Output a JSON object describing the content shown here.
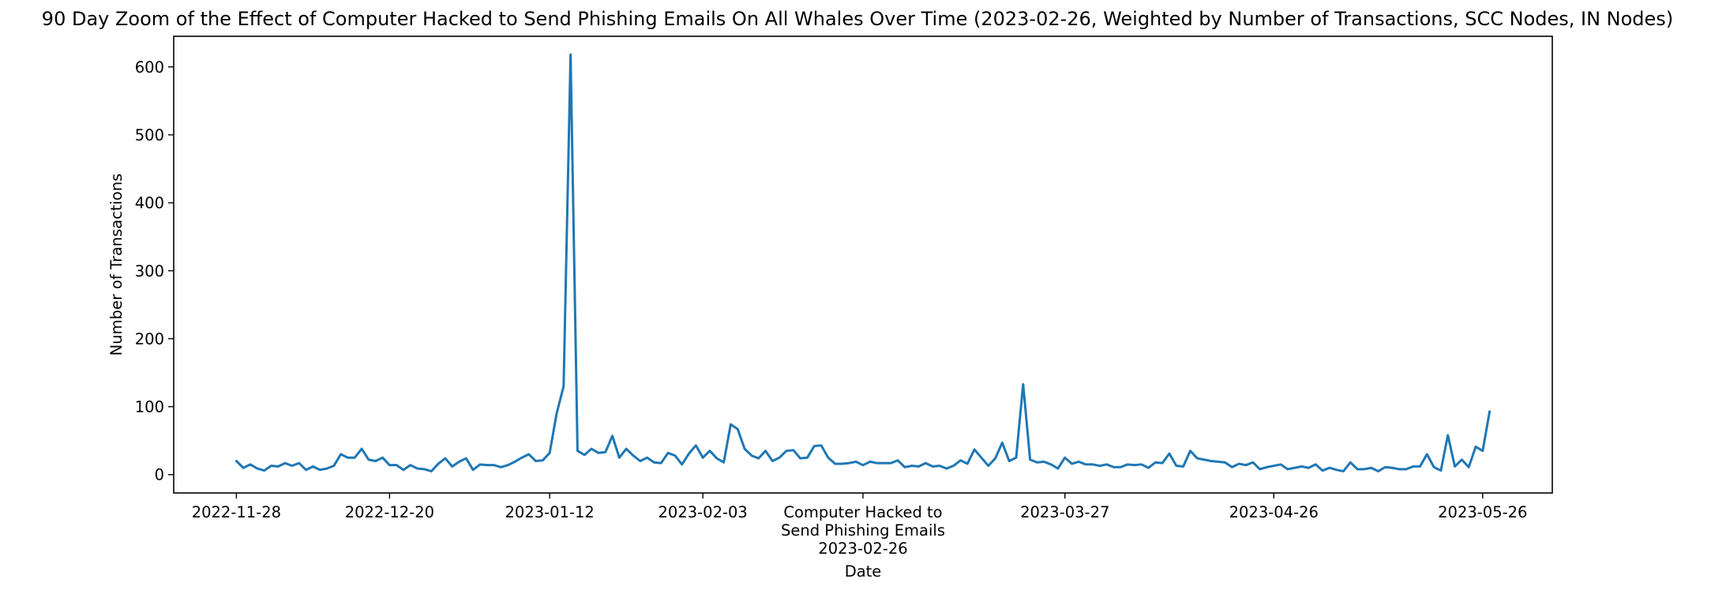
{
  "chart_data": {
    "type": "line",
    "title": "90 Day Zoom of the Effect of Computer Hacked to Send Phishing Emails On All Whales Over Time (2023-02-26, Weighted by Number of Transactions, SCC Nodes, IN Nodes)",
    "xlabel": "Date",
    "ylabel": "Number of Transactions",
    "x_start": "2022-11-28",
    "x_step_days": 1,
    "xlim": [
      "2022-11-19",
      "2023-06-05"
    ],
    "ylim": [
      -27,
      645
    ],
    "x_ticks": [
      "2022-11-28",
      "2022-12-20",
      "2023-01-12",
      "2023-02-03",
      "2023-03-27",
      "2023-04-26",
      "2023-05-26"
    ],
    "event_tick": {
      "date": "2023-02-26",
      "label_lines": [
        "Computer Hacked to",
        "Send Phishing Emails",
        "2023-02-26"
      ]
    },
    "y_ticks": [
      0,
      100,
      200,
      300,
      400,
      500,
      600
    ],
    "grid": false,
    "legend": "none",
    "series": [
      {
        "color": "#1f77b4",
        "values": [
          20,
          10,
          15,
          9,
          6,
          13,
          12,
          17,
          13,
          17,
          7,
          12,
          7,
          9,
          13,
          30,
          25,
          25,
          38,
          22,
          20,
          25,
          14,
          14,
          7,
          14,
          9,
          8,
          5,
          16,
          24,
          12,
          19,
          24,
          7,
          15,
          14,
          14,
          11,
          14,
          19,
          25,
          30,
          20,
          21,
          32,
          90,
          130,
          618,
          35,
          29,
          38,
          32,
          33,
          57,
          25,
          38,
          28,
          20,
          25,
          18,
          17,
          32,
          28,
          15,
          31,
          43,
          25,
          35,
          24,
          18,
          74,
          67,
          38,
          28,
          24,
          35,
          20,
          25,
          35,
          36,
          24,
          25,
          42,
          43,
          25,
          16,
          16,
          17,
          19,
          14,
          19,
          17,
          17,
          17,
          21,
          11,
          13,
          12,
          17,
          12,
          13,
          9,
          13,
          21,
          16,
          37,
          25,
          13,
          24,
          47,
          20,
          25,
          133,
          22,
          18,
          19,
          15,
          9,
          25,
          16,
          19,
          15,
          15,
          13,
          15,
          11,
          11,
          15,
          14,
          15,
          10,
          18,
          17,
          31,
          13,
          12,
          35,
          24,
          22,
          20,
          19,
          18,
          11,
          16,
          14,
          18,
          8,
          11,
          13,
          15,
          8,
          10,
          12,
          10,
          15,
          6,
          10,
          7,
          5,
          18,
          8,
          8,
          10,
          5,
          11,
          10,
          8,
          8,
          12,
          12,
          30,
          11,
          6,
          58,
          12,
          22,
          11,
          41,
          35,
          93
        ]
      }
    ]
  }
}
